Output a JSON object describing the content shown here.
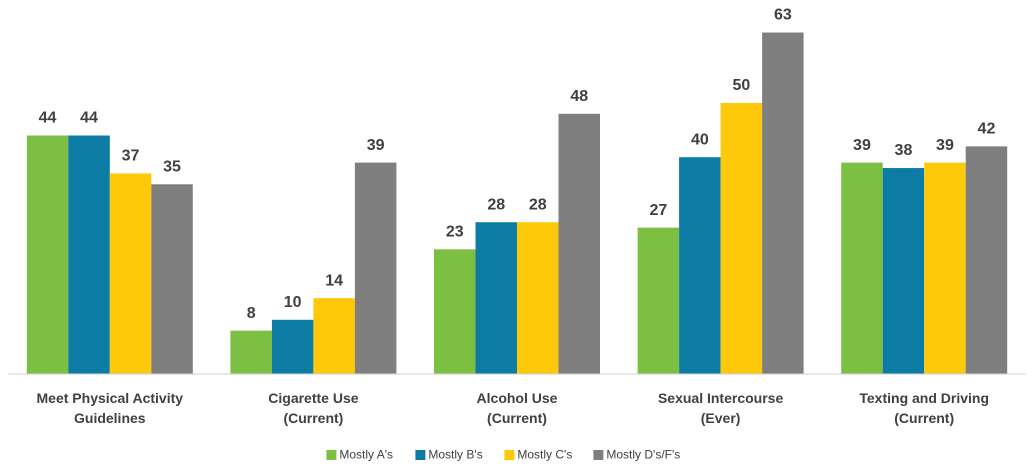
{
  "chart_data": {
    "type": "bar",
    "categories": [
      "Meet Physical Activity\nGuidelines",
      "Cigarette Use\n(Current)",
      "Alcohol Use\n(Current)",
      "Sexual Intercourse\n(Ever)",
      "Texting and Driving\n(Current)"
    ],
    "series": [
      {
        "name": "Mostly A's",
        "color": "#7cbf42",
        "values": [
          44,
          8,
          23,
          27,
          39
        ]
      },
      {
        "name": "Mostly B's",
        "color": "#0d7ca5",
        "values": [
          44,
          10,
          28,
          40,
          38
        ]
      },
      {
        "name": "Mostly C's",
        "color": "#ffc90b",
        "values": [
          37,
          14,
          28,
          50,
          39
        ]
      },
      {
        "name": "Mostly D's/F's",
        "color": "#7f7f7f",
        "values": [
          35,
          39,
          48,
          63,
          42
        ]
      }
    ],
    "ylim": [
      0,
      69
    ],
    "grid": false
  }
}
